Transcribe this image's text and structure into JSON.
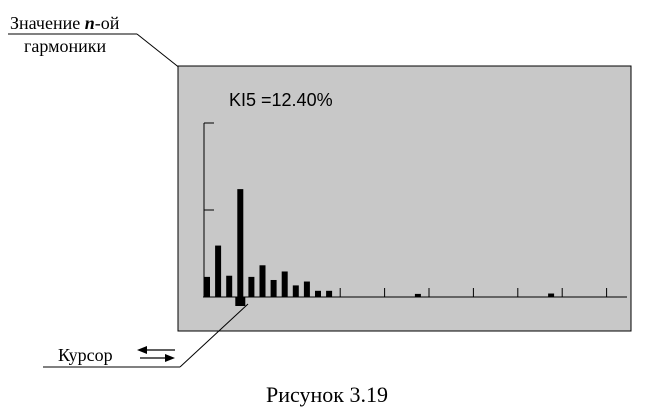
{
  "callout_top": {
    "line1_prefix": "Значение ",
    "line1_n": "n",
    "line1_suffix": "-ой",
    "line2": "гармоники"
  },
  "screen": {
    "readout": "KI5 =12.40%",
    "background_color": "#c8c8c8"
  },
  "callout_bottom": {
    "label": "Курсор"
  },
  "caption": "Рисунок 3.19",
  "chart_data": {
    "type": "bar",
    "title": "",
    "xlabel": "",
    "ylabel": "",
    "harmonics": [
      2,
      3,
      4,
      5,
      6,
      7,
      8,
      9,
      10,
      11,
      12,
      13,
      14,
      15,
      16,
      17,
      18,
      19,
      20,
      21,
      22,
      23,
      24,
      25,
      26,
      27,
      28,
      29,
      30,
      31,
      32,
      33,
      34,
      35,
      36,
      37,
      38,
      39,
      40
    ],
    "values": [
      5.2,
      13.3,
      5.5,
      27.9,
      5.2,
      8.2,
      4.4,
      6.6,
      3.0,
      4.0,
      1.6,
      1.6,
      0,
      0,
      0,
      0,
      0,
      0,
      0,
      0.8,
      0,
      0,
      0,
      0,
      0,
      0,
      0,
      0,
      0,
      0,
      0,
      0.9,
      0,
      0,
      0,
      0,
      0,
      0,
      0
    ],
    "cursor_harmonic": 5,
    "ylim": [
      0,
      45
    ],
    "y_gridlines": [
      22.5,
      45
    ]
  }
}
